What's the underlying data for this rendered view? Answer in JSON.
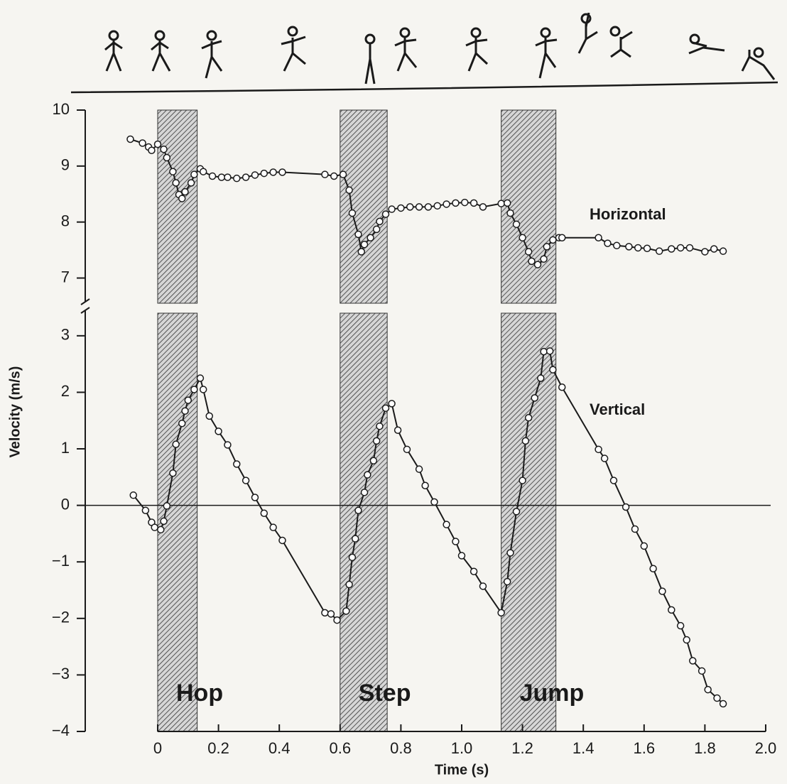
{
  "chart_data": [
    {
      "type": "line",
      "markers": "circle",
      "xlim": [
        0,
        2
      ],
      "ylim": [
        6.55,
        10
      ],
      "yticks": [
        7,
        8,
        9,
        10
      ],
      "series": [
        {
          "name": "Horizontal",
          "color": "#1a1a1a",
          "x": [
            -0.09,
            -0.05,
            -0.03,
            -0.02,
            0,
            0.02,
            0.03,
            0.05,
            0.06,
            0.07,
            0.08,
            0.09,
            0.11,
            0.12,
            0.14,
            0.15,
            0.18,
            0.21,
            0.23,
            0.26,
            0.29,
            0.32,
            0.35,
            0.38,
            0.41,
            0.55,
            0.58,
            0.61,
            0.63,
            0.64,
            0.66,
            0.67,
            0.68,
            0.7,
            0.72,
            0.73,
            0.75,
            0.77,
            0.8,
            0.83,
            0.86,
            0.89,
            0.92,
            0.95,
            0.98,
            1.01,
            1.04,
            1.07,
            1.13,
            1.15,
            1.16,
            1.18,
            1.2,
            1.22,
            1.23,
            1.25,
            1.27,
            1.28,
            1.3,
            1.32,
            1.33,
            1.45,
            1.48,
            1.51,
            1.55,
            1.58,
            1.61,
            1.65,
            1.69,
            1.72,
            1.75,
            1.8,
            1.83,
            1.86
          ],
          "values": [
            9.48,
            9.41,
            9.34,
            9.28,
            9.39,
            9.3,
            9.15,
            8.9,
            8.7,
            8.49,
            8.42,
            8.54,
            8.7,
            8.85,
            8.95,
            8.9,
            8.82,
            8.8,
            8.8,
            8.78,
            8.8,
            8.84,
            8.87,
            8.89,
            8.89,
            8.85,
            8.82,
            8.85,
            8.57,
            8.16,
            7.78,
            7.47,
            7.6,
            7.72,
            7.87,
            8.01,
            8.14,
            8.23,
            8.25,
            8.27,
            8.27,
            8.27,
            8.29,
            8.32,
            8.34,
            8.35,
            8.34,
            8.27,
            8.33,
            8.34,
            8.16,
            7.96,
            7.72,
            7.47,
            7.3,
            7.24,
            7.34,
            7.56,
            7.68,
            7.72,
            7.72,
            7.72,
            7.62,
            7.58,
            7.56,
            7.54,
            7.53,
            7.48,
            7.52,
            7.54,
            7.54,
            7.47,
            7.52,
            7.48
          ]
        }
      ]
    },
    {
      "type": "line",
      "markers": "circle",
      "zero_line": true,
      "x_label": "Time (s)",
      "y_label": "Velocity (m/s)",
      "xlim": [
        0,
        2
      ],
      "xticks": [
        0,
        0.2,
        0.4,
        0.6,
        0.8,
        {
          "value": 1,
          "label": "1.0"
        },
        1.2,
        1.4,
        1.6,
        1.8,
        {
          "value": 2,
          "label": "2.0"
        }
      ],
      "ylim": [
        -4,
        3.4
      ],
      "yticks": [
        {
          "value": -4,
          "label": "−4"
        },
        {
          "value": -3,
          "label": "−3"
        },
        {
          "value": -2,
          "label": "−2"
        },
        {
          "value": -1,
          "label": "−1"
        },
        0,
        1,
        2,
        3
      ],
      "phases": [
        {
          "label": "Hop",
          "start": 0,
          "end": 0.13
        },
        {
          "label": "Step",
          "start": 0.6,
          "end": 0.755
        },
        {
          "label": "Jump",
          "start": 1.13,
          "end": 1.31
        }
      ],
      "series": [
        {
          "name": "Vertical",
          "color": "#1a1a1a",
          "x": [
            -0.08,
            -0.04,
            -0.02,
            -0.01,
            0.01,
            0.02,
            0.03,
            0.05,
            0.06,
            0.08,
            0.09,
            0.1,
            0.12,
            0.14,
            0.15,
            0.17,
            0.2,
            0.23,
            0.26,
            0.29,
            0.32,
            0.35,
            0.38,
            0.41,
            0.55,
            0.57,
            0.59,
            0.62,
            0.63,
            0.64,
            0.65,
            0.66,
            0.68,
            0.69,
            0.71,
            0.72,
            0.73,
            0.75,
            0.77,
            0.79,
            0.82,
            0.86,
            0.88,
            0.91,
            0.95,
            0.98,
            1.0,
            1.04,
            1.07,
            1.13,
            1.15,
            1.16,
            1.18,
            1.2,
            1.21,
            1.22,
            1.24,
            1.26,
            1.27,
            1.29,
            1.3,
            1.33,
            1.45,
            1.47,
            1.5,
            1.54,
            1.57,
            1.6,
            1.63,
            1.66,
            1.69,
            1.72,
            1.74,
            1.76,
            1.79,
            1.81,
            1.84,
            1.86
          ],
          "values": [
            0.18,
            -0.09,
            -0.3,
            -0.39,
            -0.43,
            -0.28,
            -0.01,
            0.57,
            1.08,
            1.45,
            1.67,
            1.86,
            2.05,
            2.25,
            2.05,
            1.58,
            1.31,
            1.07,
            0.73,
            0.44,
            0.14,
            -0.14,
            -0.39,
            -0.62,
            -1.9,
            -1.92,
            -2.03,
            -1.87,
            -1.4,
            -0.92,
            -0.59,
            -0.09,
            0.23,
            0.54,
            0.79,
            1.14,
            1.4,
            1.72,
            1.8,
            1.33,
            0.99,
            0.64,
            0.35,
            0.06,
            -0.34,
            -0.64,
            -0.89,
            -1.17,
            -1.43,
            -1.9,
            -1.35,
            -0.84,
            -0.11,
            0.44,
            1.14,
            1.55,
            1.9,
            2.25,
            2.72,
            2.73,
            2.4,
            2.09,
            0.99,
            0.83,
            0.44,
            -0.03,
            -0.42,
            -0.72,
            -1.12,
            -1.52,
            -1.85,
            -2.13,
            -2.38,
            -2.75,
            -2.93,
            -3.26,
            -3.41,
            -3.51
          ]
        }
      ]
    }
  ]
}
